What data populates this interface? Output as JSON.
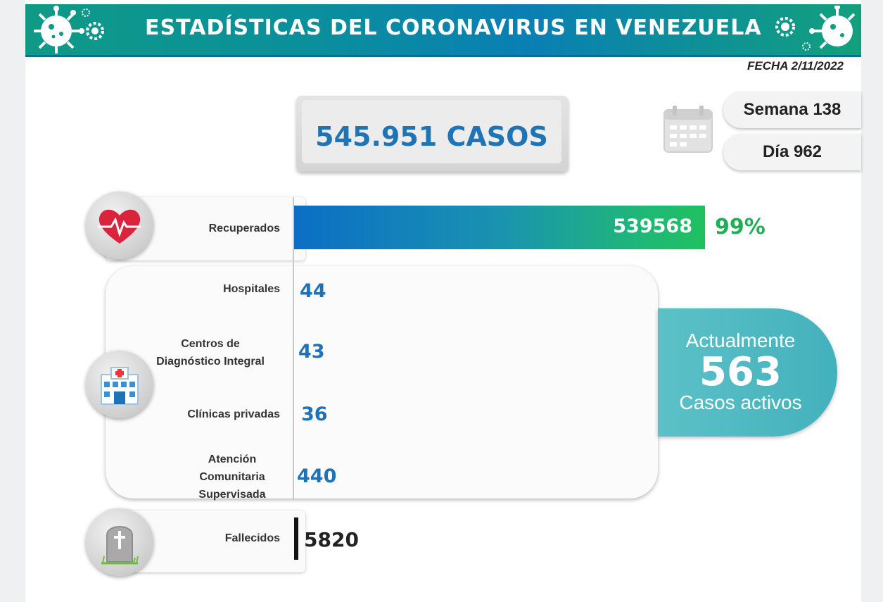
{
  "header": {
    "title": "ESTADÍSTICAS DEL CORONAVIRUS EN VENEZUELA",
    "date": "FECHA 2/11/2022"
  },
  "total": {
    "label": "545.951 CASOS"
  },
  "calendar": {
    "week": "Semana 138",
    "day": "Día 962"
  },
  "recuperados": {
    "label": "Recuperados",
    "value": "539568",
    "percent": "99%",
    "fraction": 0.99
  },
  "activos": {
    "rows": [
      {
        "label": "Hospitales",
        "value": "44"
      },
      {
        "label": "Centros de\nDiagnóstico Integral",
        "value": "43"
      },
      {
        "label": "Clínicas privadas",
        "value": "36"
      },
      {
        "label": "Atención\nComunitaria\nSupervisada",
        "value": "440"
      }
    ],
    "summary": {
      "top": "Actualmente",
      "value": "563",
      "bottom": "Casos activos"
    }
  },
  "fallecidos": {
    "label": "Fallecidos",
    "value": "5820"
  },
  "colors": {
    "blue": "#1f72b6",
    "green": "#1fb055",
    "teal": "#4bb8c1",
    "banner": "#0a8f9c"
  },
  "icons": [
    "virus-icon",
    "calendar-icon",
    "heart-icon",
    "hospital-icon",
    "gravestone-icon"
  ]
}
